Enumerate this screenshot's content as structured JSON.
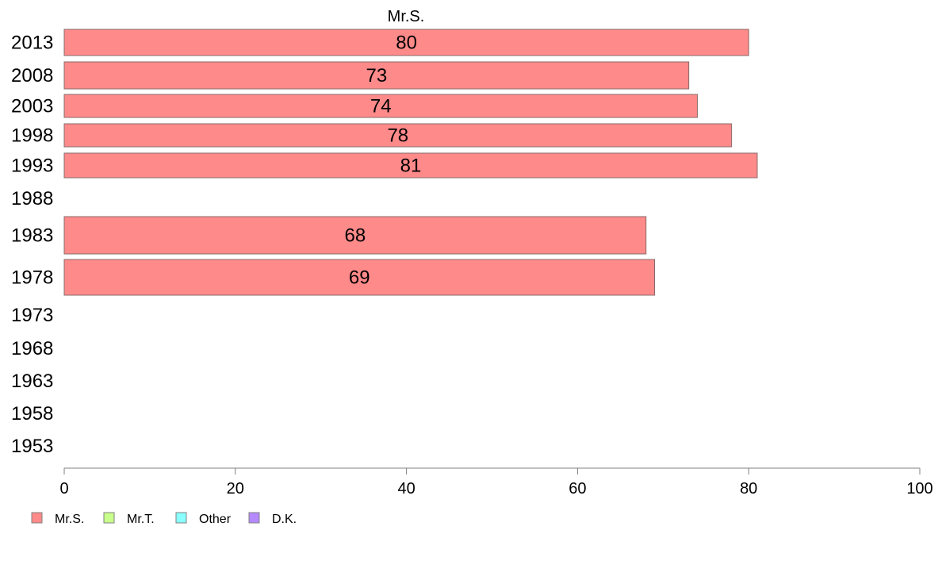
{
  "chart_data": {
    "type": "bar",
    "orientation": "horizontal",
    "column_header": "Mr.S.",
    "categories": [
      "2013",
      "2008",
      "2003",
      "1998",
      "1993",
      "1988",
      "1983",
      "1978",
      "1973",
      "1968",
      "1963",
      "1958",
      "1953"
    ],
    "series": [
      {
        "name": "Mr.S.",
        "color": "#ff8a8a",
        "values": [
          80,
          73,
          74,
          78,
          81,
          null,
          68,
          69,
          null,
          null,
          null,
          null,
          null
        ],
        "labels": [
          "80",
          "73",
          "74",
          "78",
          "81",
          "",
          "68",
          "69",
          "",
          "",
          "",
          "",
          ""
        ]
      }
    ],
    "xlim": [
      0,
      100
    ],
    "xticks": [
      0,
      20,
      40,
      60,
      80,
      100
    ],
    "xtick_labels": [
      "0",
      "20",
      "40",
      "60",
      "80",
      "100"
    ],
    "grid": false,
    "legend": {
      "position": "bottom-left",
      "items": [
        {
          "label": "Mr.S.",
          "color": "#ff8a8a"
        },
        {
          "label": "Mr.T.",
          "color": "#c8ff8a"
        },
        {
          "label": "Other",
          "color": "#8affff"
        },
        {
          "label": "D.K.",
          "color": "#b58aff"
        }
      ]
    }
  }
}
